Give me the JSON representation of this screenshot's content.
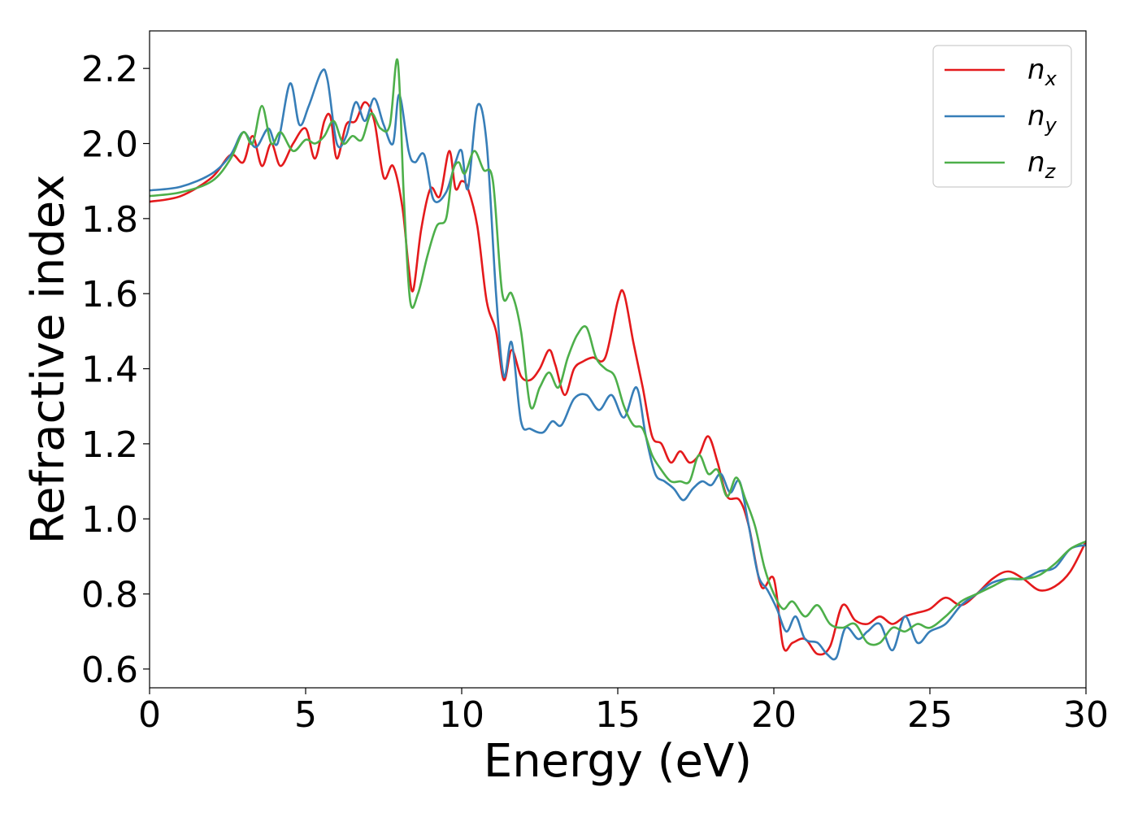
{
  "chart_data": {
    "type": "line",
    "title": "",
    "xlabel": "Energy (eV)",
    "ylabel": "Refractive index",
    "xlim": [
      0,
      30
    ],
    "ylim": [
      0.55,
      2.3
    ],
    "xticks": [
      "0",
      "5",
      "10",
      "15",
      "20",
      "25",
      "30"
    ],
    "yticks": [
      "0.6",
      "0.8",
      "1.0",
      "1.2",
      "1.4",
      "1.6",
      "1.8",
      "2.0",
      "2.2"
    ],
    "grid": false,
    "legend_position": "top-right",
    "series": [
      {
        "name": "n",
        "subscript": "x",
        "color": "#e41a1c",
        "x": [
          0,
          1,
          2,
          2.6,
          3,
          3.3,
          3.6,
          3.9,
          4.2,
          4.6,
          5,
          5.3,
          5.6,
          5.8,
          6,
          6.3,
          6.6,
          6.9,
          7.2,
          7.5,
          7.8,
          8.1,
          8.3,
          8.45,
          8.7,
          9,
          9.3,
          9.6,
          9.8,
          10,
          10.2,
          10.5,
          10.8,
          11.1,
          11.35,
          11.6,
          11.9,
          12.2,
          12.5,
          12.8,
          13,
          13.3,
          13.6,
          13.9,
          14.2,
          14.6,
          15,
          15.2,
          15.5,
          15.8,
          16.1,
          16.4,
          16.7,
          17,
          17.3,
          17.6,
          17.9,
          18.2,
          18.5,
          18.9,
          19.2,
          19.6,
          20,
          20.3,
          20.6,
          21,
          21.4,
          21.8,
          22.2,
          22.6,
          23,
          23.4,
          23.8,
          24.2,
          24.6,
          25,
          25.5,
          26,
          26.5,
          27,
          27.5,
          28,
          28.5,
          29,
          29.5,
          30
        ],
        "values": [
          1.845,
          1.86,
          1.91,
          1.97,
          1.95,
          2.02,
          1.94,
          2.0,
          1.94,
          2.0,
          2.04,
          1.96,
          2.06,
          2.07,
          1.96,
          2.05,
          2.06,
          2.11,
          2.06,
          1.91,
          1.94,
          1.83,
          1.67,
          1.61,
          1.77,
          1.88,
          1.86,
          1.98,
          1.88,
          1.9,
          1.88,
          1.78,
          1.58,
          1.5,
          1.37,
          1.45,
          1.38,
          1.37,
          1.4,
          1.45,
          1.41,
          1.33,
          1.4,
          1.42,
          1.43,
          1.43,
          1.58,
          1.6,
          1.47,
          1.35,
          1.22,
          1.2,
          1.15,
          1.18,
          1.15,
          1.17,
          1.22,
          1.15,
          1.06,
          1.05,
          0.98,
          0.82,
          0.84,
          0.66,
          0.67,
          0.68,
          0.64,
          0.66,
          0.77,
          0.73,
          0.72,
          0.74,
          0.72,
          0.74,
          0.75,
          0.76,
          0.79,
          0.77,
          0.8,
          0.84,
          0.86,
          0.84,
          0.81,
          0.82,
          0.86,
          0.94
        ]
      },
      {
        "name": "n",
        "subscript": "y",
        "color": "#377eb8",
        "x": [
          0,
          1,
          2,
          2.6,
          3,
          3.4,
          3.8,
          4.1,
          4.5,
          4.8,
          5.1,
          5.5,
          5.7,
          6,
          6.3,
          6.6,
          6.9,
          7.2,
          7.5,
          7.8,
          8.0,
          8.3,
          8.5,
          8.8,
          9.1,
          9.5,
          9.8,
          10.0,
          10.2,
          10.5,
          10.8,
          11.1,
          11.35,
          11.6,
          11.9,
          12.2,
          12.6,
          12.9,
          13.2,
          13.6,
          14,
          14.4,
          14.8,
          15.2,
          15.6,
          15.9,
          16.2,
          16.5,
          16.8,
          17.1,
          17.4,
          17.7,
          18,
          18.3,
          18.6,
          18.9,
          19.2,
          19.5,
          19.8,
          20.1,
          20.4,
          20.7,
          21,
          21.4,
          21.7,
          22,
          22.3,
          22.7,
          23,
          23.4,
          23.8,
          24.2,
          24.6,
          25,
          25.5,
          26,
          26.5,
          27,
          27.5,
          28,
          28.5,
          29,
          29.5,
          30
        ],
        "values": [
          1.875,
          1.885,
          1.92,
          1.97,
          2.03,
          1.99,
          2.04,
          2.0,
          2.16,
          2.05,
          2.1,
          2.19,
          2.17,
          2.0,
          2.02,
          2.11,
          2.06,
          2.12,
          2.05,
          2.0,
          2.13,
          1.98,
          1.95,
          1.97,
          1.85,
          1.87,
          1.95,
          1.98,
          1.88,
          2.1,
          2.0,
          1.6,
          1.38,
          1.47,
          1.26,
          1.24,
          1.23,
          1.26,
          1.25,
          1.32,
          1.33,
          1.29,
          1.33,
          1.27,
          1.35,
          1.22,
          1.12,
          1.1,
          1.08,
          1.05,
          1.08,
          1.1,
          1.09,
          1.12,
          1.07,
          1.1,
          0.98,
          0.85,
          0.81,
          0.76,
          0.7,
          0.74,
          0.68,
          0.67,
          0.64,
          0.63,
          0.71,
          0.68,
          0.7,
          0.72,
          0.65,
          0.74,
          0.67,
          0.7,
          0.72,
          0.77,
          0.8,
          0.83,
          0.84,
          0.84,
          0.86,
          0.87,
          0.92,
          0.93
        ]
      },
      {
        "name": "n",
        "subscript": "z",
        "color": "#4daf4a",
        "x": [
          0,
          1,
          2,
          2.6,
          3,
          3.3,
          3.6,
          3.9,
          4.2,
          4.6,
          5,
          5.3,
          5.6,
          5.9,
          6.2,
          6.5,
          6.8,
          7.1,
          7.4,
          7.7,
          7.95,
          8.15,
          8.35,
          8.6,
          8.9,
          9.2,
          9.5,
          9.7,
          9.9,
          10.1,
          10.4,
          10.7,
          11.0,
          11.3,
          11.6,
          11.9,
          12.2,
          12.5,
          12.8,
          13.1,
          13.4,
          13.7,
          14.0,
          14.3,
          14.6,
          14.9,
          15.2,
          15.5,
          15.8,
          16.1,
          16.4,
          16.7,
          17,
          17.3,
          17.6,
          17.9,
          18.2,
          18.5,
          18.8,
          19.1,
          19.4,
          19.7,
          20,
          20.3,
          20.6,
          21,
          21.4,
          21.8,
          22.2,
          22.6,
          23,
          23.4,
          23.8,
          24.2,
          24.6,
          25,
          25.5,
          26,
          26.5,
          27,
          27.5,
          28,
          28.5,
          29,
          29.5,
          30
        ],
        "values": [
          1.86,
          1.87,
          1.9,
          1.96,
          2.03,
          2.0,
          2.1,
          2.0,
          2.03,
          1.98,
          2.01,
          2.0,
          2.02,
          2.06,
          2.0,
          2.02,
          2.01,
          2.08,
          2.04,
          2.05,
          2.22,
          1.85,
          1.58,
          1.6,
          1.7,
          1.78,
          1.8,
          1.92,
          1.95,
          1.92,
          1.98,
          1.93,
          1.9,
          1.6,
          1.6,
          1.5,
          1.3,
          1.35,
          1.39,
          1.35,
          1.43,
          1.49,
          1.51,
          1.43,
          1.4,
          1.38,
          1.3,
          1.25,
          1.24,
          1.17,
          1.13,
          1.1,
          1.1,
          1.1,
          1.17,
          1.12,
          1.13,
          1.06,
          1.11,
          1.05,
          0.98,
          0.87,
          0.8,
          0.76,
          0.78,
          0.74,
          0.77,
          0.72,
          0.71,
          0.72,
          0.67,
          0.67,
          0.71,
          0.7,
          0.72,
          0.71,
          0.74,
          0.78,
          0.8,
          0.82,
          0.84,
          0.84,
          0.85,
          0.88,
          0.92,
          0.94
        ]
      }
    ]
  }
}
